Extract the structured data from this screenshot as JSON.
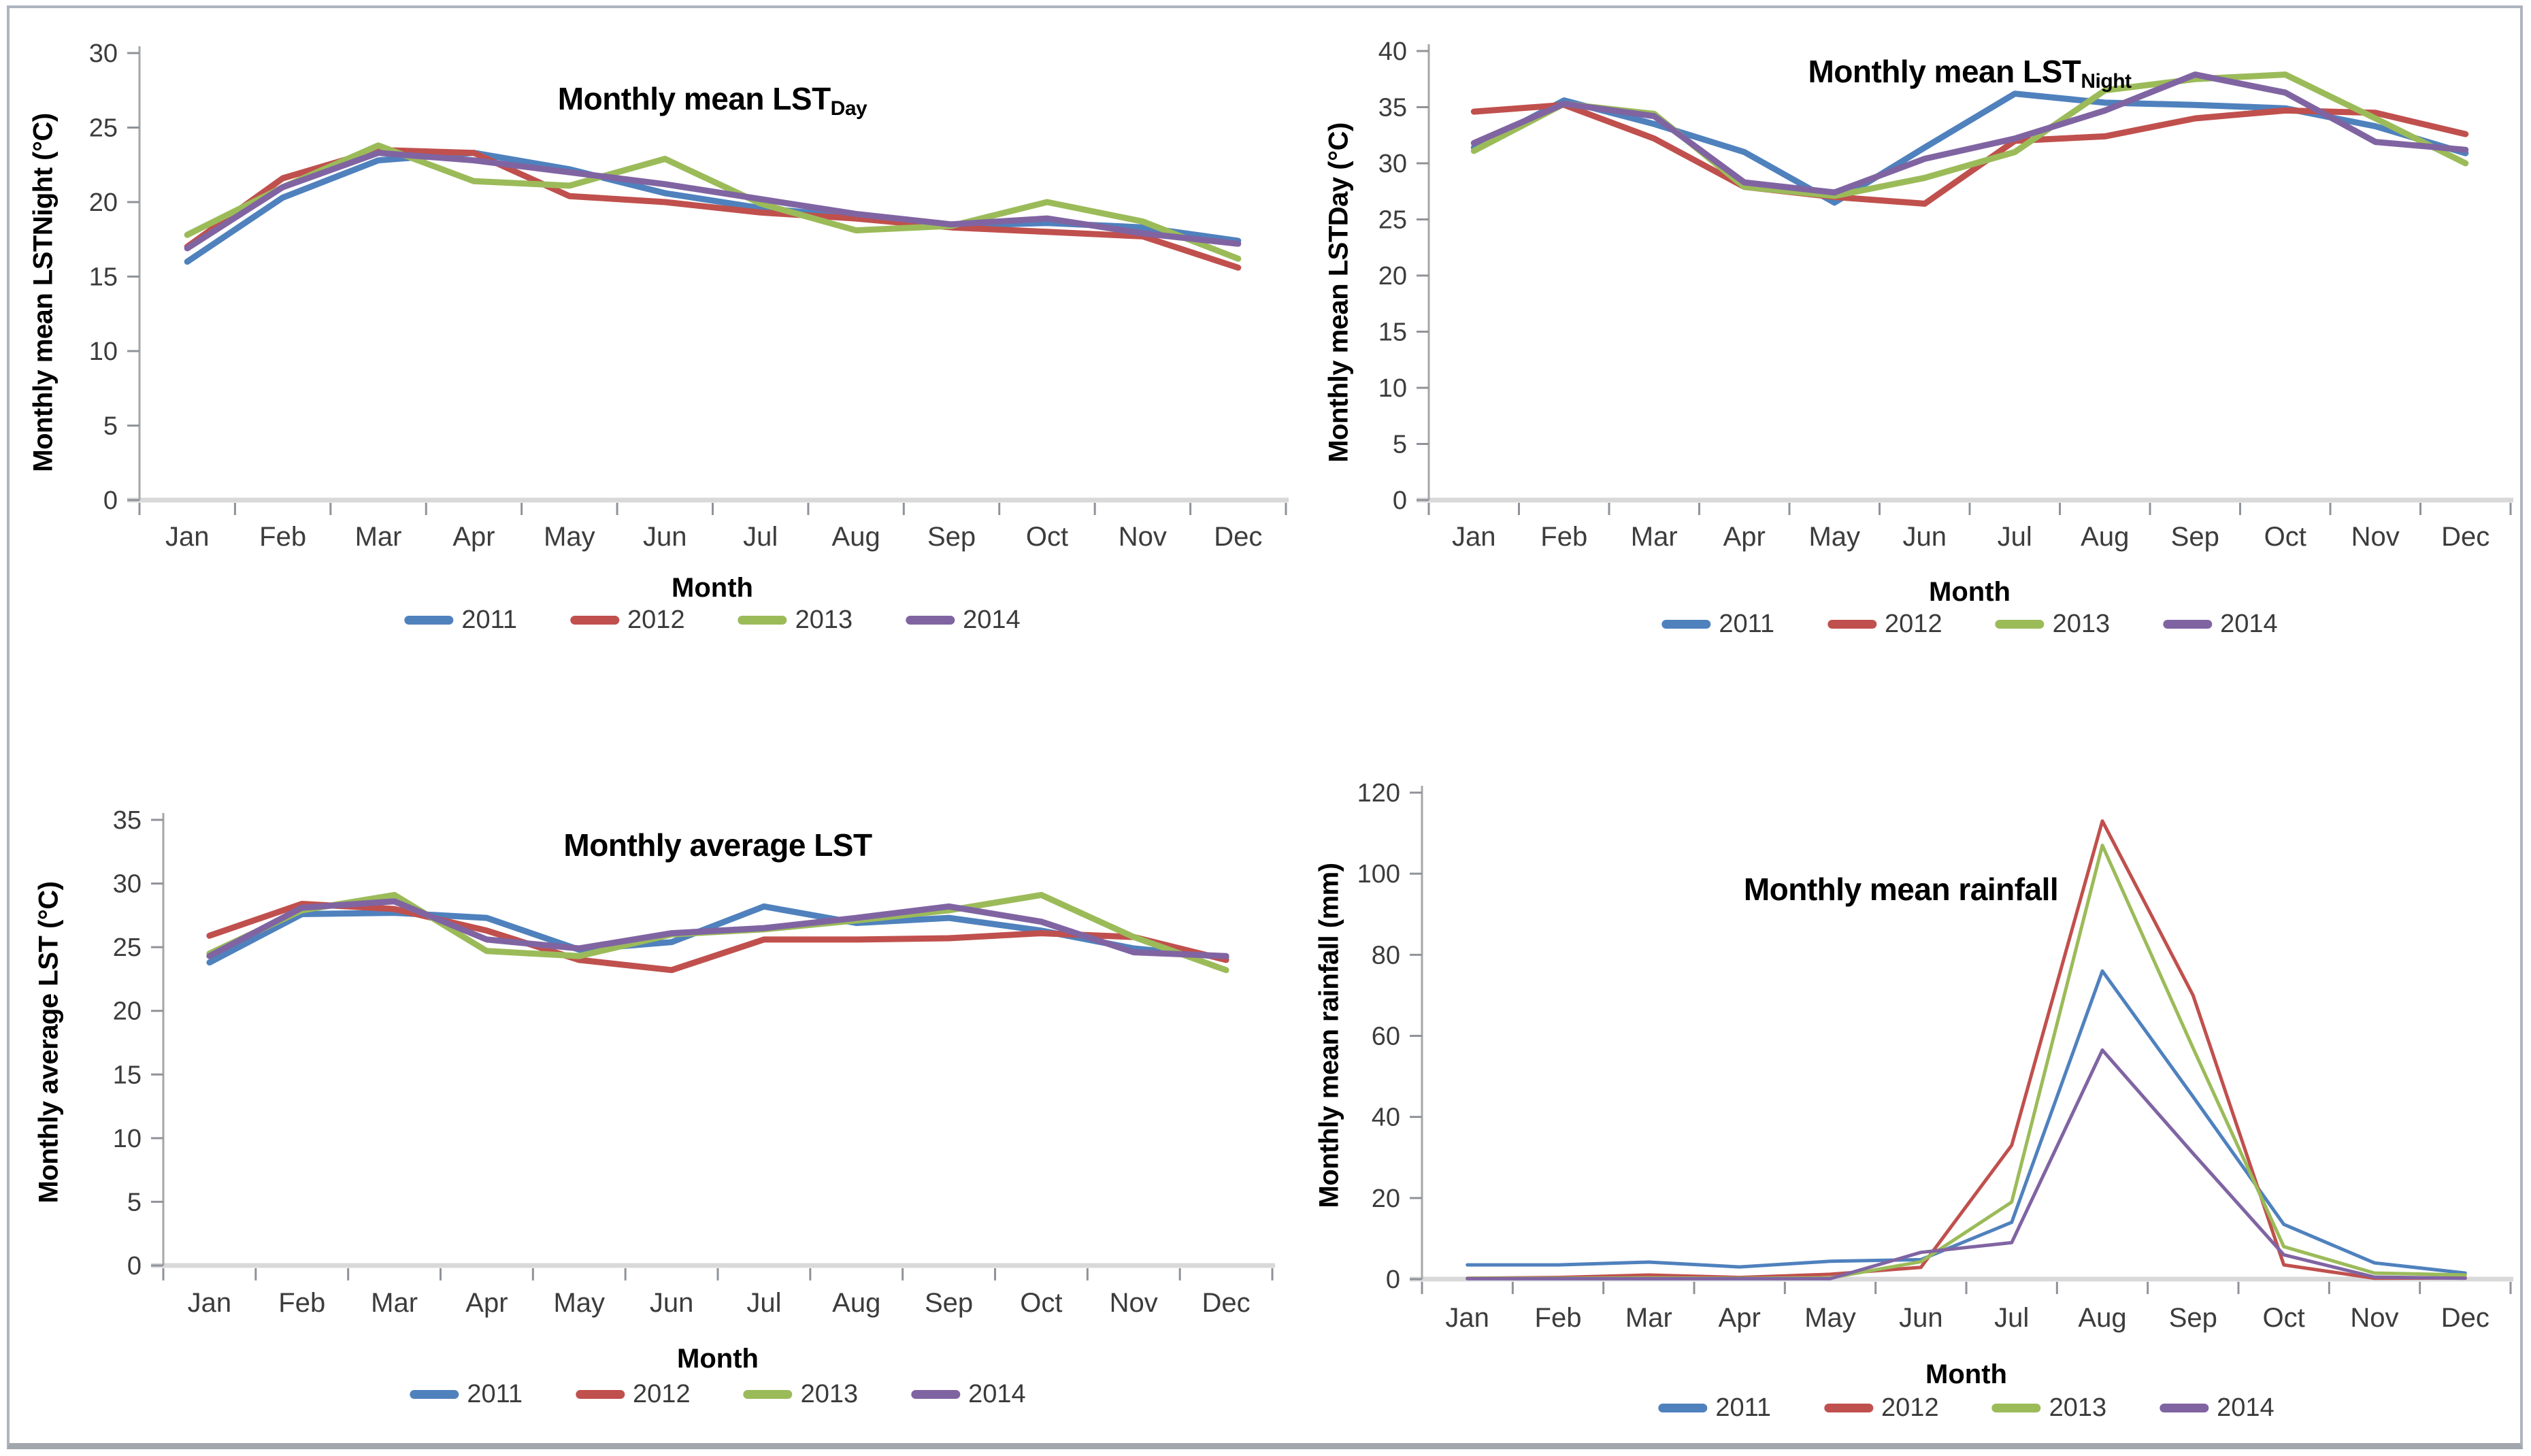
{
  "page": {
    "background": "#ffffff",
    "border_color": "#aeb4bf"
  },
  "chart_data": [
    {
      "type": "line",
      "title": "Monthly mean LST",
      "title_sub": "Day",
      "ylabel": "Monthly mean LSTNight (°C)",
      "xlabel": "Month",
      "ylim": [
        0,
        30
      ],
      "yticks": [
        0,
        5,
        10,
        15,
        20,
        25,
        30
      ],
      "grid": false,
      "legend_position": "bottom",
      "categories": [
        "Jan",
        "Feb",
        "Mar",
        "Apr",
        "May",
        "Jun",
        "Jul",
        "Aug",
        "Sep",
        "Oct",
        "Nov",
        "Dec"
      ],
      "series": [
        {
          "name": "2011",
          "color": "#4F81BD",
          "values": [
            16.0,
            20.3,
            22.8,
            23.3,
            22.2,
            20.6,
            19.6,
            19.0,
            18.4,
            18.6,
            18.3,
            17.4
          ]
        },
        {
          "name": "2012",
          "color": "#C0504D",
          "values": [
            17.0,
            21.6,
            23.5,
            23.3,
            20.4,
            20.0,
            19.3,
            18.9,
            18.3,
            18.0,
            17.7,
            15.6
          ]
        },
        {
          "name": "2013",
          "color": "#9BBB59",
          "values": [
            17.8,
            21.0,
            23.8,
            21.4,
            21.1,
            22.9,
            19.9,
            18.1,
            18.4,
            20.0,
            18.7,
            16.2
          ]
        },
        {
          "name": "2014",
          "color": "#8064A2",
          "values": [
            16.9,
            21.0,
            23.3,
            22.8,
            22.0,
            21.2,
            20.2,
            19.2,
            18.5,
            18.9,
            17.9,
            17.2
          ]
        }
      ]
    },
    {
      "type": "line",
      "title": "Monthly mean LST",
      "title_sub": "Night",
      "ylabel": "Monthly mean LSTDay  (°C)",
      "xlabel": "Month",
      "ylim": [
        0,
        40
      ],
      "yticks": [
        0,
        5,
        10,
        15,
        20,
        25,
        30,
        35,
        40
      ],
      "grid": false,
      "legend_position": "bottom",
      "categories": [
        "Jan",
        "Feb",
        "Mar",
        "Apr",
        "May",
        "Jun",
        "Jul",
        "Aug",
        "Sep",
        "Oct",
        "Nov",
        "Dec"
      ],
      "series": [
        {
          "name": "2011",
          "color": "#4F81BD",
          "values": [
            31.4,
            35.6,
            33.5,
            31.0,
            26.5,
            31.4,
            36.2,
            35.4,
            35.2,
            34.9,
            33.3,
            30.9
          ]
        },
        {
          "name": "2012",
          "color": "#C0504D",
          "values": [
            34.6,
            35.2,
            32.2,
            27.9,
            27.0,
            26.4,
            32.0,
            32.4,
            34.0,
            34.7,
            34.5,
            32.6
          ]
        },
        {
          "name": "2013",
          "color": "#9BBB59",
          "values": [
            31.1,
            35.3,
            34.4,
            27.9,
            27.1,
            28.7,
            31.0,
            36.5,
            37.5,
            37.9,
            34.0,
            30.0
          ]
        },
        {
          "name": "2014",
          "color": "#8064A2",
          "values": [
            31.8,
            35.3,
            34.2,
            28.3,
            27.4,
            30.4,
            32.2,
            34.7,
            37.9,
            36.3,
            31.9,
            31.2
          ]
        }
      ]
    },
    {
      "type": "line",
      "title": "Monthly average LST",
      "title_sub": "",
      "ylabel": "Monthly average  LST (°C)",
      "xlabel": "Month",
      "ylim": [
        0,
        35
      ],
      "yticks": [
        0,
        5,
        10,
        15,
        20,
        25,
        30,
        35
      ],
      "grid": false,
      "legend_position": "bottom",
      "categories": [
        "Jan",
        "Feb",
        "Mar",
        "Apr",
        "May",
        "Jun",
        "Jul",
        "Aug",
        "Sep",
        "Oct",
        "Nov",
        "Dec"
      ],
      "series": [
        {
          "name": "2011",
          "color": "#4F81BD",
          "values": [
            23.8,
            27.6,
            27.7,
            27.3,
            24.8,
            25.4,
            28.2,
            26.9,
            27.3,
            26.3,
            24.9,
            24.2
          ]
        },
        {
          "name": "2012",
          "color": "#C0504D",
          "values": [
            25.9,
            28.4,
            28.0,
            26.3,
            24.0,
            23.2,
            25.6,
            25.6,
            25.7,
            26.1,
            25.8,
            24.0
          ]
        },
        {
          "name": "2013",
          "color": "#9BBB59",
          "values": [
            24.5,
            27.9,
            29.1,
            24.7,
            24.3,
            26.0,
            26.4,
            27.1,
            27.9,
            29.1,
            25.8,
            23.2
          ]
        },
        {
          "name": "2014",
          "color": "#8064A2",
          "values": [
            24.3,
            28.1,
            28.6,
            25.6,
            24.9,
            26.1,
            26.5,
            27.3,
            28.2,
            27.0,
            24.6,
            24.3
          ]
        }
      ]
    },
    {
      "type": "line",
      "title": "Monthly mean rainfall",
      "title_sub": "",
      "ylabel": "Monthly mean rainfall  (mm)",
      "xlabel": "Month",
      "ylim": [
        0,
        120
      ],
      "yticks": [
        0,
        20,
        40,
        60,
        80,
        100,
        120
      ],
      "grid": false,
      "legend_position": "bottom",
      "categories": [
        "Jan",
        "Feb",
        "Mar",
        "Apr",
        "May",
        "Jun",
        "Jul",
        "Aug",
        "Sep",
        "Oct",
        "Nov",
        "Dec"
      ],
      "series": [
        {
          "name": "2011",
          "color": "#4F81BD",
          "values": [
            3.5,
            3.5,
            4.2,
            3.0,
            4.4,
            4.8,
            14.0,
            76.0,
            45.0,
            13.5,
            4.0,
            1.5
          ]
        },
        {
          "name": "2012",
          "color": "#C0504D",
          "values": [
            0.2,
            0.4,
            1.0,
            0.4,
            1.2,
            2.9,
            33.0,
            113.0,
            70.0,
            3.5,
            0.2,
            0.3
          ]
        },
        {
          "name": "2013",
          "color": "#9BBB59",
          "values": [
            0.2,
            0.2,
            0.3,
            0.2,
            0.3,
            4.3,
            19.0,
            107.0,
            57.0,
            8.0,
            1.5,
            1.0
          ]
        },
        {
          "name": "2014",
          "color": "#8064A2",
          "values": [
            0.1,
            0.1,
            0.1,
            0.1,
            0.1,
            6.6,
            9.0,
            56.5,
            31.0,
            6.0,
            0.5,
            0.2
          ]
        }
      ]
    }
  ]
}
